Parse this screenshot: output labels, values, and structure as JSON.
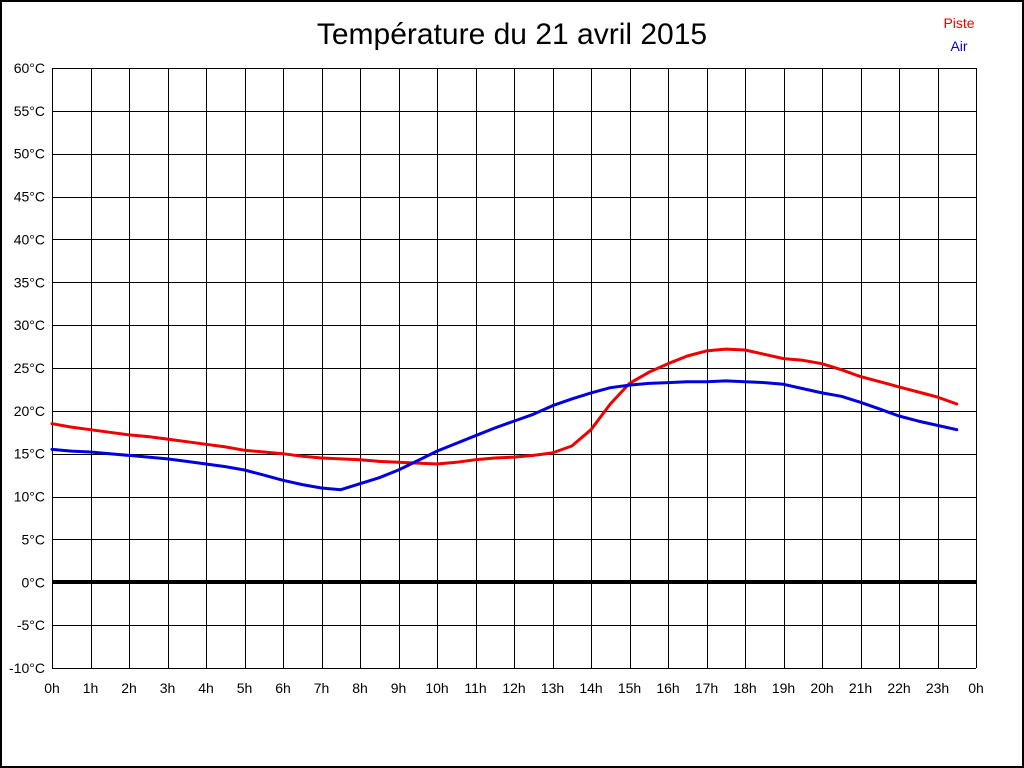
{
  "title": "Température du 21 avril 2015",
  "legend": {
    "items": [
      {
        "label": "Piste",
        "color": "#ee0000"
      },
      {
        "label": "Air",
        "color": "#0000dd"
      }
    ]
  },
  "colors": {
    "background": "#ffffff",
    "grid": "#000000",
    "axis_text": "#000000",
    "frame_border": "#000000"
  },
  "chart_data": {
    "type": "line",
    "title": "Température du 21 avril 2015",
    "xlabel": "",
    "ylabel": "",
    "x_unit": "hours",
    "xlim": [
      0,
      24
    ],
    "ylim": [
      -10,
      60
    ],
    "grid": true,
    "legend_position": "top-right",
    "zero_line": {
      "value": 0,
      "color": "#000000",
      "width": 4
    },
    "y_ticks": [
      {
        "value": 60,
        "label": "60°C"
      },
      {
        "value": 55,
        "label": "55°C"
      },
      {
        "value": 50,
        "label": "50°C"
      },
      {
        "value": 45,
        "label": "45°C"
      },
      {
        "value": 40,
        "label": "40°C"
      },
      {
        "value": 35,
        "label": "35°C"
      },
      {
        "value": 30,
        "label": "30°C"
      },
      {
        "value": 25,
        "label": "25°C"
      },
      {
        "value": 20,
        "label": "20°C"
      },
      {
        "value": 15,
        "label": "15°C"
      },
      {
        "value": 10,
        "label": "10°C"
      },
      {
        "value": 5,
        "label": "5°C"
      },
      {
        "value": 0,
        "label": "0°C"
      },
      {
        "value": -5,
        "label": "-5°C"
      },
      {
        "value": -10,
        "label": "-10°C"
      }
    ],
    "x_ticks": [
      {
        "value": 0,
        "label": "0h"
      },
      {
        "value": 1,
        "label": "1h"
      },
      {
        "value": 2,
        "label": "2h"
      },
      {
        "value": 3,
        "label": "3h"
      },
      {
        "value": 4,
        "label": "4h"
      },
      {
        "value": 5,
        "label": "5h"
      },
      {
        "value": 6,
        "label": "6h"
      },
      {
        "value": 7,
        "label": "7h"
      },
      {
        "value": 8,
        "label": "8h"
      },
      {
        "value": 9,
        "label": "9h"
      },
      {
        "value": 10,
        "label": "10h"
      },
      {
        "value": 11,
        "label": "11h"
      },
      {
        "value": 12,
        "label": "12h"
      },
      {
        "value": 13,
        "label": "13h"
      },
      {
        "value": 14,
        "label": "14h"
      },
      {
        "value": 15,
        "label": "15h"
      },
      {
        "value": 16,
        "label": "16h"
      },
      {
        "value": 17,
        "label": "17h"
      },
      {
        "value": 18,
        "label": "18h"
      },
      {
        "value": 19,
        "label": "19h"
      },
      {
        "value": 20,
        "label": "20h"
      },
      {
        "value": 21,
        "label": "21h"
      },
      {
        "value": 22,
        "label": "22h"
      },
      {
        "value": 23,
        "label": "23h"
      },
      {
        "value": 24,
        "label": "0h"
      }
    ],
    "x": [
      0,
      0.5,
      1,
      1.5,
      2,
      2.5,
      3,
      3.5,
      4,
      4.5,
      5,
      5.5,
      6,
      6.5,
      7,
      7.5,
      8,
      8.5,
      9,
      9.5,
      10,
      10.5,
      11,
      11.5,
      12,
      12.5,
      13,
      13.5,
      14,
      14.5,
      15,
      15.5,
      16,
      16.5,
      17,
      17.5,
      18,
      18.5,
      19,
      19.5,
      20,
      20.5,
      21,
      21.5,
      22,
      22.5,
      23,
      23.5
    ],
    "series": [
      {
        "name": "Piste",
        "color": "#ee0000",
        "values": [
          18.5,
          18.1,
          17.8,
          17.5,
          17.2,
          17.0,
          16.7,
          16.4,
          16.1,
          15.8,
          15.4,
          15.2,
          15.0,
          14.7,
          14.5,
          14.4,
          14.3,
          14.1,
          14.0,
          13.9,
          13.8,
          14.0,
          14.3,
          14.5,
          14.6,
          14.8,
          15.1,
          15.9,
          17.8,
          20.8,
          23.2,
          24.5,
          25.5,
          26.4,
          27.0,
          27.2,
          27.1,
          26.6,
          26.1,
          25.9,
          25.5,
          24.8,
          24.0,
          23.4,
          22.8,
          22.2,
          21.6,
          20.8
        ]
      },
      {
        "name": "Air",
        "color": "#0000dd",
        "values": [
          15.5,
          15.3,
          15.2,
          15.0,
          14.8,
          14.6,
          14.4,
          14.1,
          13.8,
          13.5,
          13.1,
          12.5,
          11.9,
          11.4,
          11.0,
          10.8,
          11.5,
          12.2,
          13.1,
          14.2,
          15.3,
          16.2,
          17.1,
          18.0,
          18.8,
          19.6,
          20.6,
          21.4,
          22.1,
          22.7,
          23.0,
          23.2,
          23.3,
          23.4,
          23.4,
          23.5,
          23.4,
          23.3,
          23.1,
          22.6,
          22.1,
          21.7,
          21.0,
          20.2,
          19.4,
          18.8,
          18.3,
          17.8
        ]
      }
    ]
  }
}
